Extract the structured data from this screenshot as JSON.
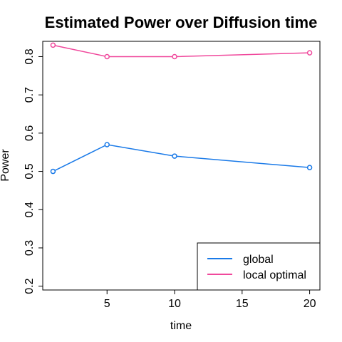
{
  "chart_data": {
    "type": "line",
    "title": "Estimated Power over Diffusion time",
    "xlabel": "time",
    "ylabel": "Power",
    "x": [
      1,
      5,
      10,
      20
    ],
    "xlim": [
      0.24,
      20.76
    ],
    "ylim": [
      0.19,
      0.84
    ],
    "x_ticks": [
      5,
      10,
      15,
      20
    ],
    "y_ticks": [
      0.2,
      0.3,
      0.4,
      0.5,
      0.6,
      0.7,
      0.8
    ],
    "x_tick_labels": [
      "5",
      "10",
      "15",
      "20"
    ],
    "y_tick_labels": [
      "0.2",
      "0.3",
      "0.4",
      "0.5",
      "0.6",
      "0.7",
      "0.8"
    ],
    "grid": false,
    "legend_position": "bottom-right",
    "series": [
      {
        "name": "global",
        "color": "#1a7ae8",
        "values": [
          0.5,
          0.57,
          0.54,
          0.51
        ]
      },
      {
        "name": "local optimal",
        "color": "#f0489c",
        "values": [
          0.83,
          0.8,
          0.8,
          0.81
        ]
      }
    ]
  }
}
